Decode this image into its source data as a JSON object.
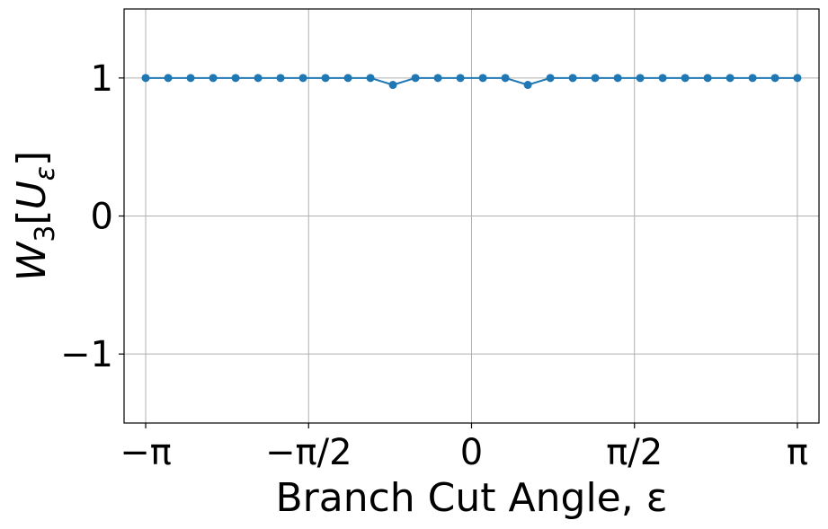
{
  "chart_data": {
    "type": "line",
    "xlabel": "Branch Cut Angle, ε",
    "ylabel": "W₃[U_ε]",
    "xlim": [
      -3.35,
      3.35
    ],
    "ylim": [
      -1.5,
      1.5
    ],
    "grid": true,
    "x_ticks": [
      {
        "value": -3.14159,
        "label": "−π"
      },
      {
        "value": -1.5708,
        "label": "−π/2"
      },
      {
        "value": 0,
        "label": "0"
      },
      {
        "value": 1.5708,
        "label": "π/2"
      },
      {
        "value": 3.14159,
        "label": "π"
      }
    ],
    "y_ticks": [
      {
        "value": -1,
        "label": "−1"
      },
      {
        "value": 0,
        "label": "0"
      },
      {
        "value": 1,
        "label": "1"
      }
    ],
    "series": [
      {
        "color": "#1f77b4",
        "marker": "circle",
        "x": [
          -3.1416,
          -2.9248,
          -2.7081,
          -2.4914,
          -2.2747,
          -2.058,
          -1.8413,
          -1.6246,
          -1.4079,
          -1.1911,
          -0.9744,
          -0.7577,
          -0.541,
          -0.3243,
          -0.1076,
          0.1092,
          0.3259,
          0.5426,
          0.7593,
          0.976,
          1.1927,
          1.4094,
          1.6261,
          1.8428,
          2.0595,
          2.2762,
          2.4929,
          2.7096,
          2.9263,
          3.1416
        ],
        "y": [
          1,
          1,
          1,
          1,
          1,
          1,
          1,
          1,
          1,
          1,
          1,
          0.95,
          1,
          1,
          1,
          1,
          1,
          0.95,
          1,
          1,
          1,
          1,
          1,
          1,
          1,
          1,
          1,
          1,
          1,
          1
        ]
      }
    ]
  }
}
